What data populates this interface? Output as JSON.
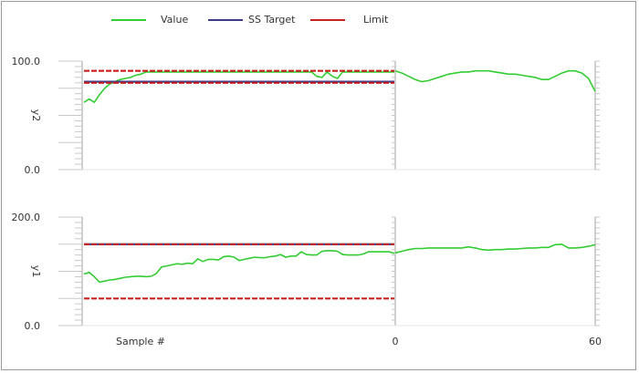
{
  "legend": {
    "value_label": "Value",
    "ss_label": "SS Target",
    "limit_label": "Limit"
  },
  "colors": {
    "value": "#32cd32",
    "ss_target": "#3b3b8a",
    "limit": "#c8201c",
    "axis": "#a0a0a0",
    "frame": "#9a9a9a"
  },
  "chart_data": [
    {
      "type": "line",
      "ylabel": "y2",
      "ylim": [
        0,
        100
      ],
      "ytick_labels": [
        "100.0",
        "0.0"
      ],
      "history": {
        "xlim": [
          0,
          60
        ],
        "series": [
          {
            "name": "Value",
            "x": [
              0,
              1,
              2,
              3,
              4,
              5,
              6,
              7,
              8,
              9,
              10,
              11,
              12,
              13,
              14,
              15,
              16,
              17,
              18,
              19,
              20,
              21,
              22,
              23,
              24,
              25,
              26,
              27,
              28,
              29,
              30,
              31,
              32,
              33,
              34,
              35,
              36,
              37,
              38,
              39,
              40,
              41,
              42,
              43,
              44,
              45,
              46,
              47,
              48,
              49,
              50,
              51,
              52,
              53,
              54,
              55,
              56,
              57,
              58,
              59,
              60
            ],
            "y": [
              62,
              65,
              62,
              69,
              75,
              79,
              81,
              83,
              84,
              85,
              87,
              88,
              90,
              90,
              90,
              90,
              90,
              90,
              90,
              90,
              90,
              90,
              90,
              90,
              90,
              90,
              90,
              90,
              90,
              90,
              90,
              90,
              90,
              90,
              90,
              90,
              90,
              90,
              90,
              90,
              90,
              90,
              90,
              90,
              90,
              86,
              85,
              90,
              86,
              84,
              90,
              90,
              90,
              90,
              90,
              90,
              90,
              90,
              90,
              90,
              90
            ]
          },
          {
            "name": "SS Target",
            "x": [
              0,
              60
            ],
            "y": [
              81,
              81
            ]
          },
          {
            "name": "Limit",
            "x": [
              0,
              60
            ],
            "y": [
              91,
              91
            ]
          },
          {
            "name": "Limit",
            "x": [
              0,
              60
            ],
            "y": [
              80,
              80
            ]
          }
        ]
      },
      "prediction": {
        "xlim": [
          0,
          60
        ],
        "x_tick_labels": [
          "0",
          "60"
        ],
        "series": [
          {
            "name": "Value",
            "x": [
              0,
              2,
              4,
              6,
              8,
              10,
              12,
              14,
              16,
              18,
              20,
              22,
              24,
              26,
              28,
              30,
              32,
              34,
              36,
              38,
              40,
              42,
              44,
              46,
              48,
              50,
              52,
              54,
              56,
              58,
              60
            ],
            "y": [
              91,
              89,
              86,
              83,
              81,
              82,
              84,
              86,
              88,
              89,
              90,
              90,
              91,
              91,
              91,
              90,
              89,
              88,
              88,
              87,
              86,
              85,
              83,
              83,
              86,
              89,
              91,
              91,
              89,
              84,
              72
            ]
          }
        ]
      }
    },
    {
      "type": "line",
      "ylabel": "y1",
      "ylim": [
        0,
        200
      ],
      "ytick_labels": [
        "200.0",
        "0.0"
      ],
      "history": {
        "xlim": [
          0,
          60
        ],
        "xlabel": "Sample #",
        "series": [
          {
            "name": "Value",
            "x": [
              0,
              1,
              2,
              3,
              4,
              5,
              6,
              7,
              8,
              9,
              10,
              11,
              12,
              13,
              14,
              15,
              16,
              17,
              18,
              19,
              20,
              21,
              22,
              23,
              24,
              25,
              26,
              27,
              28,
              29,
              30,
              31,
              32,
              33,
              34,
              35,
              36,
              37,
              38,
              39,
              40,
              41,
              42,
              43,
              44,
              45,
              46,
              47,
              48,
              49,
              50,
              51,
              52,
              53,
              54,
              55,
              56,
              57,
              58,
              59,
              60
            ],
            "y": [
              95,
              98,
              90,
              80,
              82,
              84,
              85,
              87,
              89,
              90,
              91,
              91,
              90,
              91,
              96,
              108,
              110,
              112,
              114,
              113,
              115,
              114,
              123,
              118,
              122,
              122,
              121,
              127,
              128,
              126,
              120,
              122,
              124,
              126,
              125,
              125,
              127,
              128,
              131,
              126,
              128,
              128,
              136,
              131,
              130,
              130,
              137,
              138,
              138,
              137,
              131,
              130,
              130,
              130,
              132,
              136,
              136,
              136,
              136,
              136,
              133
            ]
          },
          {
            "name": "SS Target",
            "x": [
              0,
              60
            ],
            "y": [
              150,
              150
            ]
          },
          {
            "name": "Limit",
            "x": [
              0,
              60
            ],
            "y": [
              150,
              150
            ]
          },
          {
            "name": "Limit",
            "x": [
              0,
              60
            ],
            "y": [
              50,
              50
            ]
          }
        ]
      },
      "prediction": {
        "xlim": [
          0,
          60
        ],
        "x_tick_labels": [
          "0",
          "60"
        ],
        "series": [
          {
            "name": "Value",
            "x": [
              0,
              2,
              4,
              6,
              8,
              10,
              12,
              14,
              16,
              18,
              20,
              22,
              24,
              26,
              28,
              30,
              32,
              34,
              36,
              38,
              40,
              42,
              44,
              46,
              48,
              50,
              52,
              54,
              56,
              58,
              60
            ],
            "y": [
              134,
              137,
              140,
              142,
              142,
              143,
              143,
              143,
              143,
              143,
              143,
              145,
              143,
              140,
              139,
              140,
              140,
              141,
              141,
              142,
              143,
              143,
              144,
              144,
              149,
              150,
              143,
              143,
              144,
              146,
              149
            ]
          }
        ]
      }
    }
  ]
}
